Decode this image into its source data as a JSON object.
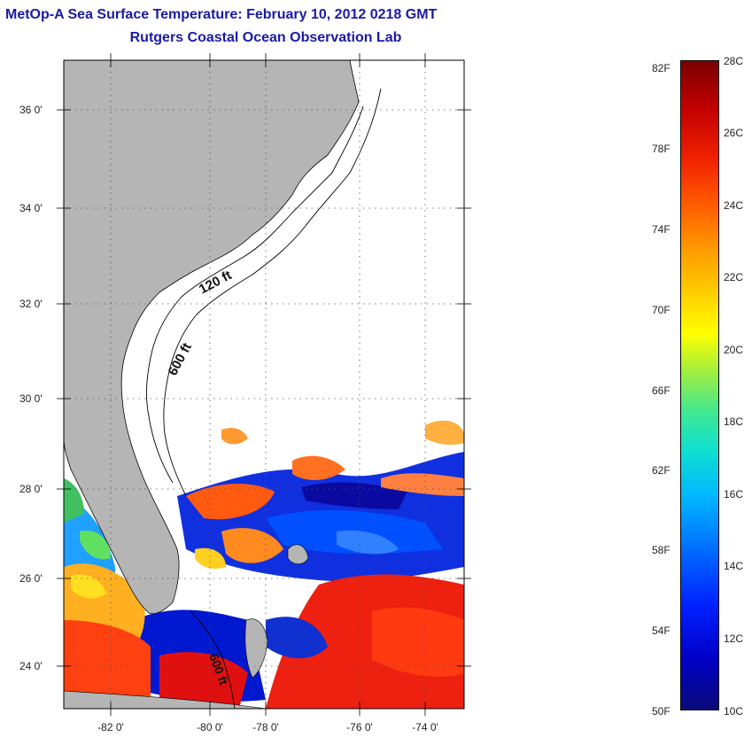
{
  "header": {
    "title": "MetOp-A Sea Surface Temperature:  February 10, 2012 0218 GMT",
    "subtitle": "Rutgers Coastal Ocean Observation Lab"
  },
  "map": {
    "latitude_labels": [
      "36 0'",
      "34 0'",
      "32 0'",
      "30 0'",
      "28 0'",
      "26 0'",
      "24 0'"
    ],
    "longitude_labels": [
      "-82 0'",
      "-80 0'",
      "-78 0'",
      "-76 0'",
      "-74 0'"
    ],
    "contour_labels": [
      "120 ft",
      "600 ft",
      "600 ft"
    ],
    "colors": {
      "land": "#b5b5b5",
      "no_data": "#ffffff",
      "grid": "#555555"
    }
  },
  "colorbar": {
    "fahrenheit_labels": [
      "82F",
      "78F",
      "74F",
      "70F",
      "66F",
      "62F",
      "58F",
      "54F",
      "50F"
    ],
    "celsius_labels": [
      "28C",
      "26C",
      "24C",
      "22C",
      "20C",
      "18C",
      "16C",
      "14C",
      "12C",
      "10C"
    ]
  }
}
